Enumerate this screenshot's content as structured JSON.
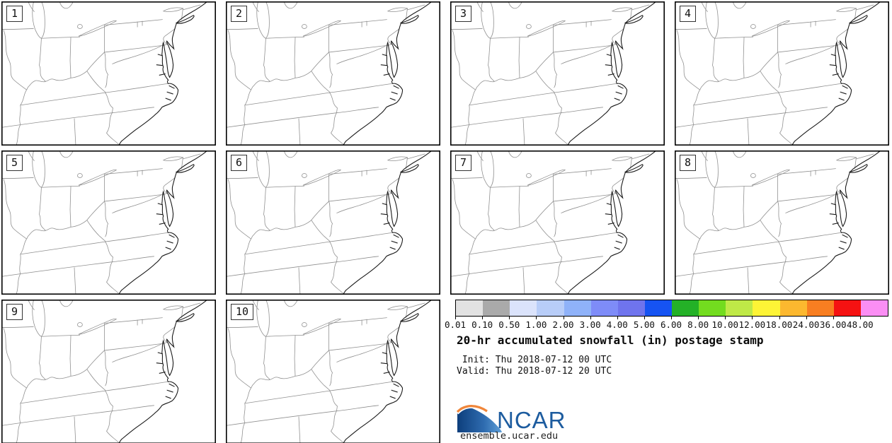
{
  "title": "20-hr accumulated snowfall (in) postage stamp",
  "init_line": " Init: Thu 2018-07-12 00 UTC",
  "valid_line": "Valid: Thu 2018-07-12 20 UTC",
  "panels": [
    "1",
    "2",
    "3",
    "4",
    "5",
    "6",
    "7",
    "8",
    "9",
    "10"
  ],
  "colorbar": {
    "units": "in",
    "tick_labels": [
      "0.01",
      "0.10",
      "0.50",
      "1.00",
      "2.00",
      "3.00",
      "4.00",
      "5.00",
      "6.00",
      "8.00",
      "10.00",
      "12.00",
      "18.00",
      "24.00",
      "36.00",
      "48.00"
    ],
    "segment_colors": [
      "#e2e2e2",
      "#aaaaaa",
      "#dbe3fb",
      "#b8cdf8",
      "#8fb2f9",
      "#7e8cf8",
      "#6f74ed",
      "#1653f2",
      "#24b127",
      "#73dc1f",
      "#bfe947",
      "#fdf436",
      "#fcb82f",
      "#f87e21",
      "#f51212",
      "#fb8ef4"
    ]
  },
  "logo": {
    "text": "NCAR",
    "site": "ensemble.ucar.edu",
    "blue": "#1d5c9f",
    "orange": "#f0863a"
  }
}
